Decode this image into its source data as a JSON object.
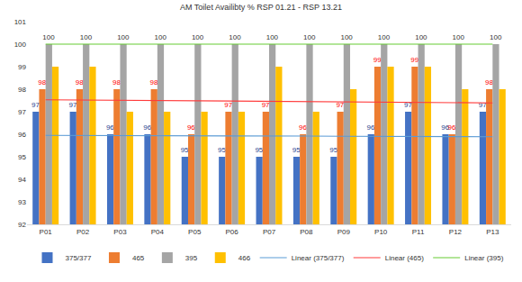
{
  "chart_data": {
    "type": "bar",
    "title": "AM Toilet Availibty % RSP 01.21 - RSP 13.21",
    "categories": [
      "P01",
      "P02",
      "P03",
      "P04",
      "P05",
      "P06",
      "P07",
      "P08",
      "P09",
      "P10",
      "P11",
      "P12",
      "P13"
    ],
    "series": [
      {
        "name": "375/377",
        "color": "#4472c4",
        "data_labels": true,
        "values": [
          97,
          97,
          96,
          96,
          95,
          95,
          95,
          95,
          95,
          96,
          97,
          96,
          97
        ]
      },
      {
        "name": "465",
        "color": "#ed7d31",
        "data_labels": true,
        "values": [
          98,
          98,
          98,
          98,
          96,
          97,
          97,
          96,
          97,
          99,
          99,
          96,
          98
        ]
      },
      {
        "name": "395",
        "color": "#a5a5a5",
        "data_labels": true,
        "values": [
          100,
          100,
          100,
          100,
          100,
          100,
          100,
          100,
          100,
          100,
          100,
          100,
          100
        ]
      },
      {
        "name": "466",
        "color": "#ffc000",
        "data_labels": false,
        "values": [
          99,
          99,
          97,
          97,
          97,
          97,
          99,
          97,
          98,
          99,
          99,
          98,
          98
        ]
      },
      {
        "name": "Linear (375/377)",
        "type": "line",
        "color": "#5b9bd5",
        "values": [
          95.95,
          95.95,
          95.94,
          95.94,
          95.93,
          95.93,
          95.92,
          95.92,
          95.91,
          95.91,
          95.9,
          95.9,
          95.89
        ]
      },
      {
        "name": "Linear (465)",
        "type": "line",
        "color": "#ff3b3b",
        "values": [
          97.53,
          97.52,
          97.51,
          97.49,
          97.48,
          97.47,
          97.46,
          97.45,
          97.44,
          97.43,
          97.41,
          97.4,
          97.39
        ]
      },
      {
        "name": "Linear (395)",
        "type": "line",
        "color": "#66cc33",
        "values": [
          100,
          100,
          100,
          100,
          100,
          100,
          100,
          100,
          100,
          100,
          100,
          100,
          100
        ]
      }
    ],
    "ylim": [
      92,
      101
    ],
    "yticks": [
      92,
      93,
      94,
      95,
      96,
      97,
      98,
      99,
      100,
      101
    ],
    "grid": false,
    "legend": "bottom"
  }
}
